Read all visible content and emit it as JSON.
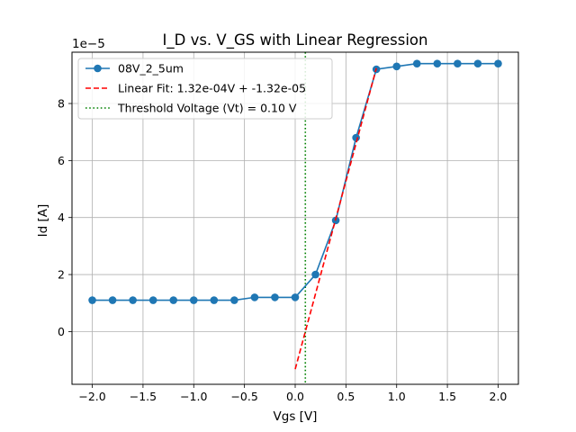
{
  "chart_data": {
    "type": "line",
    "title": "I_D vs. V_GS with Linear Regression",
    "xlabel": "Vgs [V]",
    "ylabel": "Id [A]",
    "y_offset_text": "1e−5",
    "xlim": [
      -2.2,
      2.2
    ],
    "ylim": [
      -1.85,
      9.8
    ],
    "y_scale_factor": 1e-05,
    "grid": true,
    "legend_position": "top-left",
    "x_ticks": [
      -2.0,
      -1.5,
      -1.0,
      -0.5,
      0.0,
      0.5,
      1.0,
      1.5,
      2.0
    ],
    "x_tick_labels": [
      "−2.0",
      "−1.5",
      "−1.0",
      "−0.5",
      "0.0",
      "0.5",
      "1.0",
      "1.5",
      "2.0"
    ],
    "y_ticks": [
      0,
      2,
      4,
      6,
      8
    ],
    "y_tick_labels": [
      "0",
      "2",
      "4",
      "6",
      "8"
    ],
    "series": [
      {
        "name": "08V_2_5um",
        "style": "line-marker",
        "color": "#1f77b4",
        "x": [
          -2.0,
          -1.8,
          -1.6,
          -1.4,
          -1.2,
          -1.0,
          -0.8,
          -0.6,
          -0.4,
          -0.2,
          0.0,
          0.2,
          0.4,
          0.6,
          0.8,
          1.0,
          1.2,
          1.4,
          1.6,
          1.8,
          2.0
        ],
        "y": [
          1.1,
          1.1,
          1.1,
          1.1,
          1.1,
          1.1,
          1.1,
          1.1,
          1.2,
          1.2,
          1.2,
          2.0,
          3.9,
          6.8,
          9.2,
          9.3,
          9.4,
          9.4,
          9.4,
          9.4,
          9.4
        ]
      },
      {
        "name": "Linear Fit: 1.32e-04V + -1.32e-05",
        "style": "dashed",
        "color": "#ff0000",
        "x": [
          0.0,
          0.8
        ],
        "y": [
          -1.32,
          9.24
        ]
      },
      {
        "name": "Threshold Voltage (Vt) = 0.10 V",
        "style": "dotted-vertical",
        "color": "#008000",
        "x_value": 0.1
      }
    ]
  }
}
